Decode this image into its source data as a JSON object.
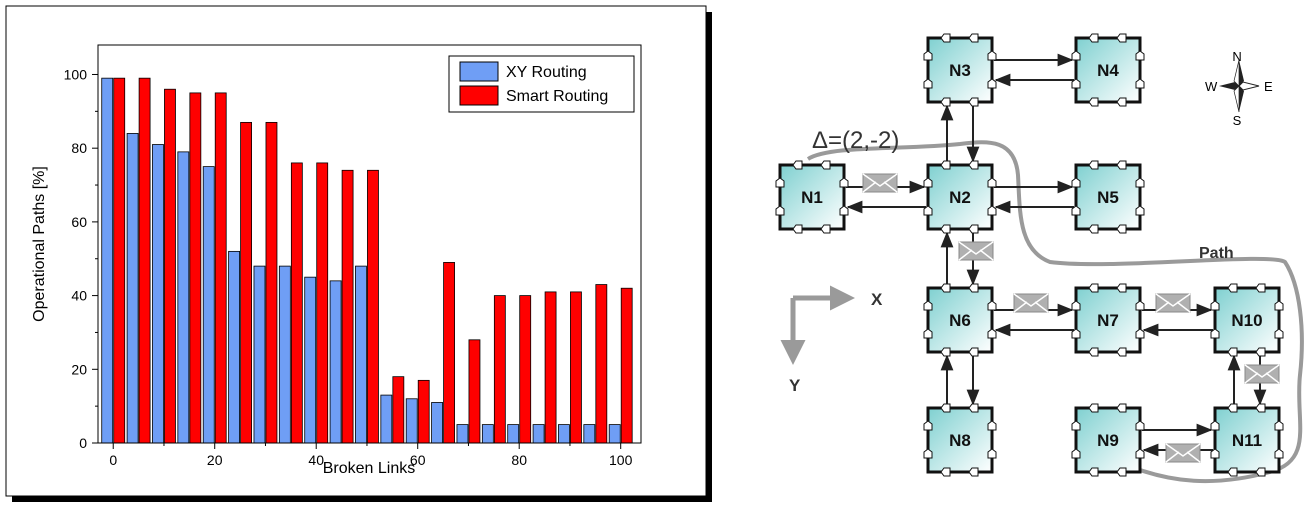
{
  "chart_data": {
    "type": "bar",
    "title": "",
    "xlabel": "Broken Links",
    "ylabel": "Operational Paths [%]",
    "xlim": [
      -3,
      104
    ],
    "ylim": [
      0,
      108
    ],
    "xticks": [
      0,
      20,
      40,
      60,
      80,
      100
    ],
    "yticks": [
      0,
      20,
      40,
      60,
      80,
      100
    ],
    "legend_position": "top-right",
    "x": [
      0,
      5,
      10,
      15,
      20,
      25,
      30,
      35,
      40,
      45,
      50,
      55,
      60,
      65,
      70,
      75,
      80,
      85,
      90,
      95,
      100
    ],
    "series": [
      {
        "name": "XY Routing",
        "color": "#6f9ef5",
        "values": [
          99,
          84,
          81,
          79,
          75,
          52,
          48,
          48,
          45,
          44,
          48,
          13,
          12,
          11,
          5,
          5,
          5,
          5,
          5,
          5,
          5
        ]
      },
      {
        "name": "Smart Routing",
        "color": "#ff0000",
        "values": [
          99,
          99,
          96,
          95,
          95,
          87,
          87,
          76,
          76,
          74,
          74,
          18,
          17,
          49,
          28,
          40,
          40,
          41,
          41,
          43,
          42
        ]
      }
    ]
  },
  "diagram": {
    "nodes": [
      {
        "id": "N1",
        "label": "N1"
      },
      {
        "id": "N2",
        "label": "N2"
      },
      {
        "id": "N3",
        "label": "N3"
      },
      {
        "id": "N4",
        "label": "N4"
      },
      {
        "id": "N5",
        "label": "N5"
      },
      {
        "id": "N6",
        "label": "N6"
      },
      {
        "id": "N7",
        "label": "N7"
      },
      {
        "id": "N8",
        "label": "N8"
      },
      {
        "id": "N9",
        "label": "N9"
      },
      {
        "id": "N10",
        "label": "N10"
      },
      {
        "id": "N11",
        "label": "N11"
      }
    ],
    "delta_label": "Δ=(2,-2)",
    "path_label": "Path",
    "axis_x_label": "X",
    "axis_y_label": "Y",
    "compass": {
      "n": "N",
      "s": "S",
      "e": "E",
      "w": "W"
    },
    "node_color": "#7fd0d0"
  }
}
